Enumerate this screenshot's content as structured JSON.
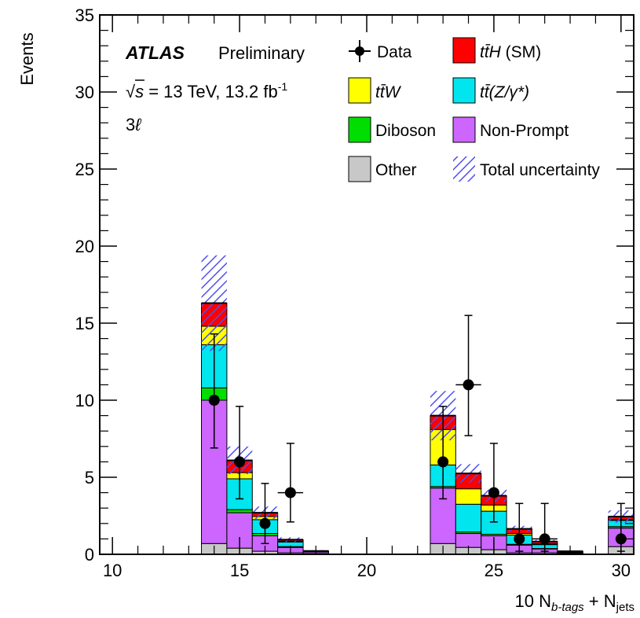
{
  "chart_data": {
    "type": "bar",
    "stacked": true,
    "title": "",
    "xlabel_main": "10 N",
    "xlabel_sub1": "b-tags",
    "xlabel_plus": " + N",
    "xlabel_sub2": "jets",
    "ylabel": "Events",
    "xlim": [
      9.5,
      30.5
    ],
    "ylim": [
      0,
      35
    ],
    "xticks": [
      10,
      15,
      20,
      25,
      30
    ],
    "yticks": [
      0,
      5,
      10,
      15,
      20,
      25,
      30,
      35
    ],
    "info": {
      "experiment": "ATLAS",
      "status": "Preliminary",
      "energy_prefix": "√",
      "energy_s": "s",
      "energy_rest": " = 13 TeV, 13.2 fb",
      "lumi_exp": "-1",
      "channel_num": "3",
      "channel_lep": "ℓ"
    },
    "bins_lo": [
      13.5,
      14.5,
      15.5,
      16.5,
      17.5,
      22.5,
      23.5,
      24.5,
      25.5,
      26.5,
      27.5,
      29.5
    ],
    "bins_hi": [
      14.5,
      15.5,
      16.5,
      17.5,
      18.5,
      23.5,
      24.5,
      25.5,
      26.5,
      27.5,
      28.5,
      30.5
    ],
    "series": [
      {
        "name": "Other",
        "color": "#c8c8c8",
        "values": [
          0.7,
          0.4,
          0.2,
          0.1,
          0.05,
          0.7,
          0.45,
          0.3,
          0.1,
          0.1,
          0.05,
          0.5
        ]
      },
      {
        "name": "Non-Prompt",
        "color": "#cc66ff",
        "values": [
          9.3,
          2.3,
          1.0,
          0.35,
          0.1,
          3.6,
          0.9,
          0.9,
          0.5,
          0.25,
          0.05,
          1.2
        ]
      },
      {
        "name": "Diboson",
        "color": "#00dd00",
        "values": [
          0.8,
          0.2,
          0.15,
          0.05,
          0.0,
          0.1,
          0.1,
          0.1,
          0.05,
          0.03,
          0.0,
          0.1
        ]
      },
      {
        "name": "ttZ",
        "color": "#00e5ee",
        "values": [
          2.8,
          2.0,
          0.9,
          0.3,
          0.05,
          1.4,
          1.8,
          1.5,
          0.6,
          0.25,
          0.05,
          0.4
        ]
      },
      {
        "name": "ttW",
        "color": "#ffff00",
        "values": [
          1.2,
          0.4,
          0.2,
          0.05,
          0.0,
          2.3,
          1.0,
          0.4,
          0.1,
          0.05,
          0.0,
          0.05
        ]
      },
      {
        "name": "ttH (SM)",
        "color": "#ff0000",
        "values": [
          1.5,
          0.8,
          0.25,
          0.1,
          0.02,
          0.9,
          1.0,
          0.6,
          0.3,
          0.15,
          0.05,
          0.2
        ]
      }
    ],
    "uncertainty": [
      3.1,
      0.9,
      0.4,
      0.15,
      0.05,
      1.6,
      0.6,
      0.4,
      0.2,
      0.1,
      0.05,
      0.4
    ],
    "data": [
      {
        "x": 14,
        "y": 10,
        "ylo": 6.9,
        "yhi": 14.3,
        "xerr": false
      },
      {
        "x": 15,
        "y": 6,
        "ylo": 3.6,
        "yhi": 9.6,
        "xerr": false
      },
      {
        "x": 16,
        "y": 2,
        "ylo": 0.7,
        "yhi": 4.6,
        "xerr": false
      },
      {
        "x": 17,
        "y": 4,
        "ylo": 2.1,
        "yhi": 7.2,
        "xerr": true
      },
      {
        "x": 23,
        "y": 6,
        "ylo": 3.6,
        "yhi": 9.6,
        "xerr": false
      },
      {
        "x": 24,
        "y": 11,
        "ylo": 7.7,
        "yhi": 15.5,
        "xerr": true
      },
      {
        "x": 25,
        "y": 4,
        "ylo": 2.1,
        "yhi": 7.2,
        "xerr": false
      },
      {
        "x": 26,
        "y": 1,
        "ylo": 0.2,
        "yhi": 3.3,
        "xerr": false
      },
      {
        "x": 27,
        "y": 1,
        "ylo": 0.2,
        "yhi": 3.3,
        "xerr": true
      },
      {
        "x": 30,
        "y": 1,
        "ylo": 0.2,
        "yhi": 3.3,
        "xerr": false
      }
    ],
    "legend": [
      {
        "key": "data",
        "label": "Data"
      },
      {
        "key": "tth",
        "label": " (SM)",
        "math": "tt̄H"
      },
      {
        "key": "ttw",
        "label": "",
        "math": "tt̄W"
      },
      {
        "key": "ttz",
        "label": "(Z/γ*)",
        "math": "tt̄"
      },
      {
        "key": "diboson",
        "label": "Diboson"
      },
      {
        "key": "nonprompt",
        "label": "Non-Prompt"
      },
      {
        "key": "other",
        "label": "Other"
      },
      {
        "key": "unc",
        "label": "Total uncertainty"
      }
    ],
    "legend_position": "top-right"
  }
}
